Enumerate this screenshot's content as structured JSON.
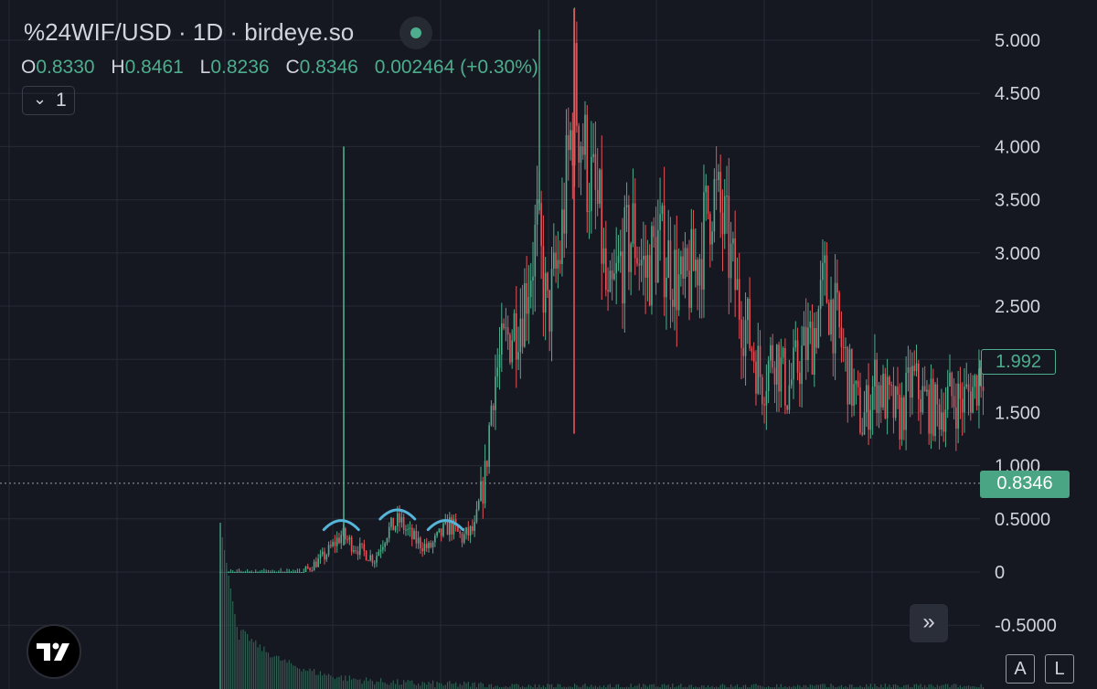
{
  "header": {
    "title": "%24WIF/USD · 1D · birdeye.so",
    "ohlc": {
      "o_label": "O",
      "o_value": "0.8330",
      "h_label": "H",
      "h_value": "0.8461",
      "l_label": "L",
      "l_value": "0.8236",
      "c_label": "C",
      "c_value": "0.8346",
      "change": "0.002464 (+0.30%)"
    },
    "indicator_count": "1"
  },
  "colors": {
    "background": "#161821",
    "up": "#4cae8d",
    "down": "#e8525a",
    "grid": "#262a35",
    "axis_text": "#d1d4dc",
    "annotation": "#56b4d8"
  },
  "chart_data": {
    "type": "candlestick",
    "symbol": "%24WIF/USD",
    "interval": "1D",
    "ylim": [
      -0.75,
      5.35
    ],
    "y_ticks": [
      "5.000",
      "4.500",
      "4.000",
      "3.500",
      "3.000",
      "2.500",
      "2.000",
      "1.500",
      "1.000",
      "0.5000",
      "0",
      "-0.5000"
    ],
    "y_tick_values": [
      5.0,
      4.5,
      4.0,
      3.5,
      3.0,
      2.5,
      2.0,
      1.5,
      1.0,
      0.5,
      0,
      -0.5
    ],
    "last_price_label": "1.992",
    "last_price": 1.992,
    "current_price_label": "0.8346",
    "current_price": 0.8346,
    "anchors": [
      [
        0,
        0.0
      ],
      [
        40,
        0.0
      ],
      [
        50,
        0.15
      ],
      [
        58,
        0.35
      ],
      [
        64,
        0.25
      ],
      [
        74,
        0.12
      ],
      [
        80,
        0.38
      ],
      [
        86,
        0.48
      ],
      [
        92,
        0.32
      ],
      [
        100,
        0.22
      ],
      [
        110,
        0.45
      ],
      [
        116,
        0.32
      ],
      [
        122,
        0.4
      ],
      [
        127,
        0.9
      ],
      [
        131,
        1.8
      ],
      [
        138,
        2.2
      ],
      [
        145,
        2.5
      ],
      [
        152,
        3.2
      ],
      [
        157,
        2.4
      ],
      [
        163,
        3.0
      ],
      [
        170,
        4.5
      ],
      [
        176,
        3.8
      ],
      [
        182,
        3.3
      ],
      [
        186,
        2.4
      ],
      [
        192,
        2.9
      ],
      [
        198,
        3.2
      ],
      [
        204,
        2.8
      ],
      [
        210,
        3.1
      ],
      [
        216,
        2.9
      ],
      [
        222,
        2.6
      ],
      [
        230,
        3.0
      ],
      [
        236,
        3.6
      ],
      [
        242,
        3.2
      ],
      [
        248,
        2.6
      ],
      [
        254,
        2.2
      ],
      [
        260,
        1.8
      ],
      [
        266,
        2.1
      ],
      [
        272,
        1.7
      ],
      [
        278,
        2.0
      ],
      [
        284,
        2.2
      ],
      [
        290,
        2.7
      ],
      [
        296,
        2.3
      ],
      [
        302,
        1.8
      ],
      [
        308,
        1.4
      ],
      [
        314,
        1.8
      ],
      [
        320,
        1.6
      ],
      [
        326,
        1.45
      ],
      [
        332,
        1.8
      ],
      [
        338,
        1.6
      ],
      [
        344,
        1.5
      ],
      [
        350,
        1.65
      ],
      [
        356,
        1.6
      ],
      [
        362,
        1.75
      ],
      [
        366,
        1.992
      ]
    ],
    "volume_label": "",
    "annotations": [
      {
        "type": "arc",
        "at_candle": 58,
        "price": 0.45
      },
      {
        "type": "arc",
        "at_candle": 85,
        "price": 0.55
      },
      {
        "type": "arc",
        "at_candle": 108,
        "price": 0.45
      }
    ]
  },
  "controls": {
    "logo_icon": "tradingview-logo-icon",
    "scroll_forward_icon": "double-chevron-right-icon",
    "auto_scale_label": "A",
    "log_scale_label": "L"
  }
}
